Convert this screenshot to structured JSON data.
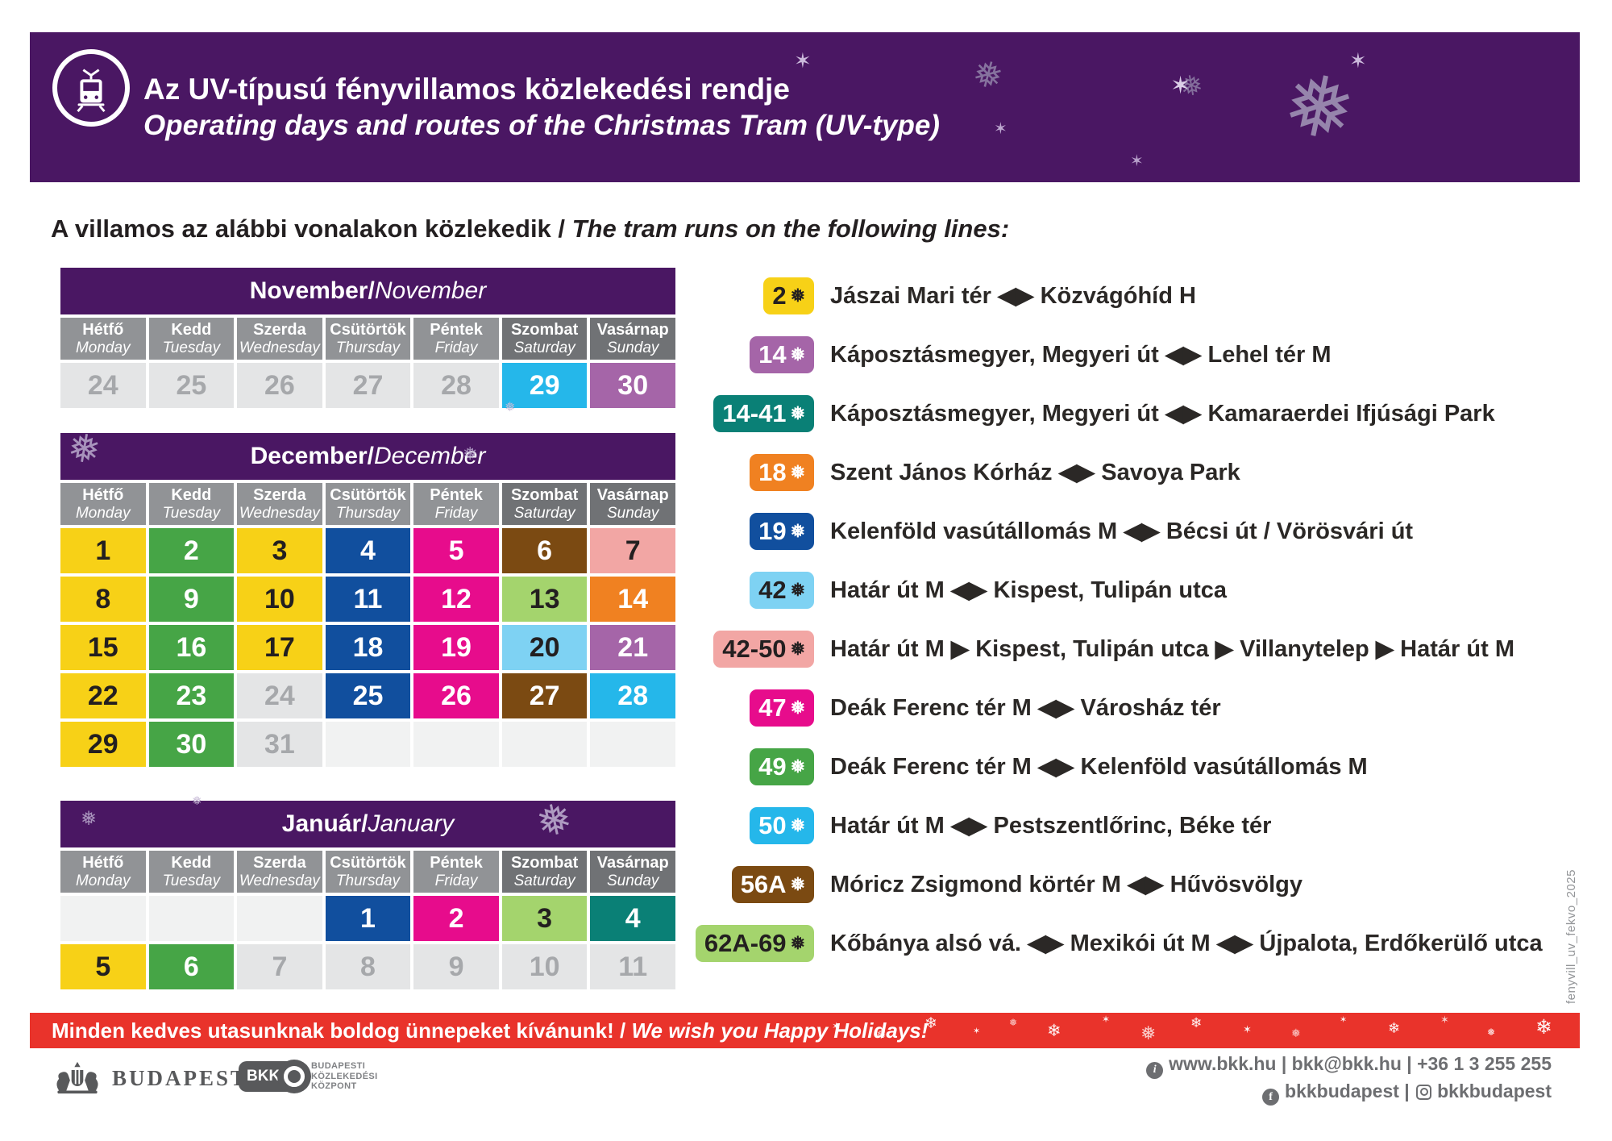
{
  "palette": {
    "purple": "#4a1763",
    "red": "#e9332b",
    "heading": "#231f20",
    "daygray": "#919396",
    "weekendgray": "#707275",
    "footergray": "#6d6e71",
    "logogray": "#58595b"
  },
  "icons": {
    "snowflake": "❅",
    "snowflake_alt": "❄",
    "sparkle": "✶",
    "info_letter": "i",
    "facebook_letter": "f",
    "arrow_both": "◀▶",
    "arrow_right": "▶"
  },
  "sep": " / ",
  "header": {
    "title_hu": "Az UV-típusú fényvillamos közlekedési rendje",
    "title_en": "Operating days and routes of the Christmas Tram (UV-type)"
  },
  "intro": {
    "hu": "A villamos az alábbi vonalakon közlekedik",
    "en": "The tram runs on the following lines:"
  },
  "day_headers": [
    {
      "hu": "Hétfő",
      "en": "Monday",
      "weekend": false
    },
    {
      "hu": "Kedd",
      "en": "Tuesday",
      "weekend": false
    },
    {
      "hu": "Szerda",
      "en": "Wednesday",
      "weekend": false
    },
    {
      "hu": "Csütörtök",
      "en": "Thursday",
      "weekend": false
    },
    {
      "hu": "Péntek",
      "en": "Friday",
      "weekend": false
    },
    {
      "hu": "Szombat",
      "en": "Saturday",
      "weekend": true
    },
    {
      "hu": "Vasárnap",
      "en": "Sunday",
      "weekend": true
    }
  ],
  "cell_styles": {
    "yellow": {
      "bg": "#f7d117",
      "fg": "#231f20"
    },
    "green": {
      "bg": "#46a546",
      "fg": "#ffffff"
    },
    "blue": {
      "bg": "#114f9e",
      "fg": "#ffffff"
    },
    "magenta": {
      "bg": "#e70c8c",
      "fg": "#ffffff"
    },
    "brown": {
      "bg": "#7b4a12",
      "fg": "#ffffff"
    },
    "salmon": {
      "bg": "#f2a6a4",
      "fg": "#231f20"
    },
    "lightgreen": {
      "bg": "#a4d46d",
      "fg": "#231f20"
    },
    "orange": {
      "bg": "#f08121",
      "fg": "#ffffff"
    },
    "lightblue": {
      "bg": "#7ed2f3",
      "fg": "#231f20"
    },
    "purple": {
      "bg": "#a565a8",
      "fg": "#ffffff"
    },
    "cyan": {
      "bg": "#25b7ea",
      "fg": "#ffffff"
    },
    "teal": {
      "bg": "#0a8076",
      "fg": "#ffffff"
    },
    "off": {
      "bg": "#e4e5e6",
      "fg": "#a6a8ab"
    },
    "empty": {
      "bg": "#f1f2f2",
      "fg": "#f1f2f2"
    }
  },
  "calendars": [
    {
      "id": "november",
      "title_hu": "November",
      "title_en": "November",
      "weeks": [
        [
          {
            "d": "24",
            "s": "off"
          },
          {
            "d": "25",
            "s": "off"
          },
          {
            "d": "26",
            "s": "off"
          },
          {
            "d": "27",
            "s": "off"
          },
          {
            "d": "28",
            "s": "off"
          },
          {
            "d": "29",
            "s": "cyan"
          },
          {
            "d": "30",
            "s": "purple"
          }
        ]
      ]
    },
    {
      "id": "december",
      "title_hu": "December",
      "title_en": "December",
      "weeks": [
        [
          {
            "d": "1",
            "s": "yellow"
          },
          {
            "d": "2",
            "s": "green"
          },
          {
            "d": "3",
            "s": "yellow"
          },
          {
            "d": "4",
            "s": "blue"
          },
          {
            "d": "5",
            "s": "magenta"
          },
          {
            "d": "6",
            "s": "brown"
          },
          {
            "d": "7",
            "s": "salmon"
          }
        ],
        [
          {
            "d": "8",
            "s": "yellow"
          },
          {
            "d": "9",
            "s": "green"
          },
          {
            "d": "10",
            "s": "yellow"
          },
          {
            "d": "11",
            "s": "blue"
          },
          {
            "d": "12",
            "s": "magenta"
          },
          {
            "d": "13",
            "s": "lightgreen"
          },
          {
            "d": "14",
            "s": "orange"
          }
        ],
        [
          {
            "d": "15",
            "s": "yellow"
          },
          {
            "d": "16",
            "s": "green"
          },
          {
            "d": "17",
            "s": "yellow"
          },
          {
            "d": "18",
            "s": "blue"
          },
          {
            "d": "19",
            "s": "magenta"
          },
          {
            "d": "20",
            "s": "lightblue"
          },
          {
            "d": "21",
            "s": "purple"
          }
        ],
        [
          {
            "d": "22",
            "s": "yellow"
          },
          {
            "d": "23",
            "s": "green"
          },
          {
            "d": "24",
            "s": "off"
          },
          {
            "d": "25",
            "s": "blue"
          },
          {
            "d": "26",
            "s": "magenta"
          },
          {
            "d": "27",
            "s": "brown"
          },
          {
            "d": "28",
            "s": "cyan"
          }
        ],
        [
          {
            "d": "29",
            "s": "yellow"
          },
          {
            "d": "30",
            "s": "green"
          },
          {
            "d": "31",
            "s": "off"
          },
          {
            "d": "",
            "s": "empty"
          },
          {
            "d": "",
            "s": "empty"
          },
          {
            "d": "",
            "s": "empty"
          },
          {
            "d": "",
            "s": "empty"
          }
        ]
      ]
    },
    {
      "id": "january",
      "title_hu": "Január",
      "title_en": "January",
      "weeks": [
        [
          {
            "d": "",
            "s": "empty"
          },
          {
            "d": "",
            "s": "empty"
          },
          {
            "d": "",
            "s": "empty"
          },
          {
            "d": "1",
            "s": "blue"
          },
          {
            "d": "2",
            "s": "magenta"
          },
          {
            "d": "3",
            "s": "lightgreen"
          },
          {
            "d": "4",
            "s": "teal"
          }
        ],
        [
          {
            "d": "5",
            "s": "yellow"
          },
          {
            "d": "6",
            "s": "green"
          },
          {
            "d": "7",
            "s": "off"
          },
          {
            "d": "8",
            "s": "off"
          },
          {
            "d": "9",
            "s": "off"
          },
          {
            "d": "10",
            "s": "off"
          },
          {
            "d": "11",
            "s": "off"
          }
        ]
      ]
    }
  ],
  "routes": [
    {
      "badge": "2",
      "style": "yellow",
      "route": "Jászai Mari tér ◀▶ Közvágóhíd H"
    },
    {
      "badge": "14",
      "style": "purple",
      "route": "Káposztásmegyer, Megyeri út ◀▶ Lehel tér M"
    },
    {
      "badge": "14-41",
      "style": "teal",
      "route": "Káposztásmegyer, Megyeri út ◀▶ Kamaraerdei Ifjúsági Park"
    },
    {
      "badge": "18",
      "style": "orange",
      "route": "Szent János Kórház ◀▶ Savoya Park"
    },
    {
      "badge": "19",
      "style": "blue",
      "route": "Kelenföld vasútállomás M ◀▶ Bécsi út / Vörösvári út"
    },
    {
      "badge": "42",
      "style": "lightblue",
      "route": "Határ út M ◀▶ Kispest, Tulipán utca"
    },
    {
      "badge": "42-50",
      "style": "salmon",
      "route": "Határ út M ▶ Kispest, Tulipán utca ▶ Villanytelep ▶ Határ út M"
    },
    {
      "badge": "47",
      "style": "magenta",
      "route": "Deák Ferenc tér M ◀▶ Városház tér"
    },
    {
      "badge": "49",
      "style": "green",
      "route": "Deák Ferenc tér M ◀▶ Kelenföld vasútállomás M"
    },
    {
      "badge": "50",
      "style": "cyan",
      "route": "Határ út M ◀▶ Pestszentlőrinc, Béke tér"
    },
    {
      "badge": "56A",
      "style": "brown",
      "route": "Móricz Zsigmond körtér M ◀▶ Hűvösvölgy"
    },
    {
      "badge": "62A-69",
      "style": "lightgreen",
      "route": "Kőbánya alsó vá. ◀▶ Mexikói út M ◀▶ Újpalota, Erdőkerülő utca"
    }
  ],
  "banner": {
    "hu": "Minden kedves utasunknak boldog ünnepeket kívánunk!",
    "en": "We wish you Happy Holidays!"
  },
  "footer": {
    "budapest_label": "BUDAPEST",
    "bkk_label": "BKK",
    "bkk_org_line1": "BUDAPESTI",
    "bkk_org_line2": "KÖZLEKEDÉSI",
    "bkk_org_line3": "KÖZPONT",
    "contact_line1": "www.bkk.hu | bkk@bkk.hu | +36 1 3 255 255",
    "contact_fb": "bkkbudapest",
    "contact_sep": " | ",
    "contact_ig": "bkkbudapest"
  },
  "watermark": "fenyvill_uv_fekvo_2025"
}
